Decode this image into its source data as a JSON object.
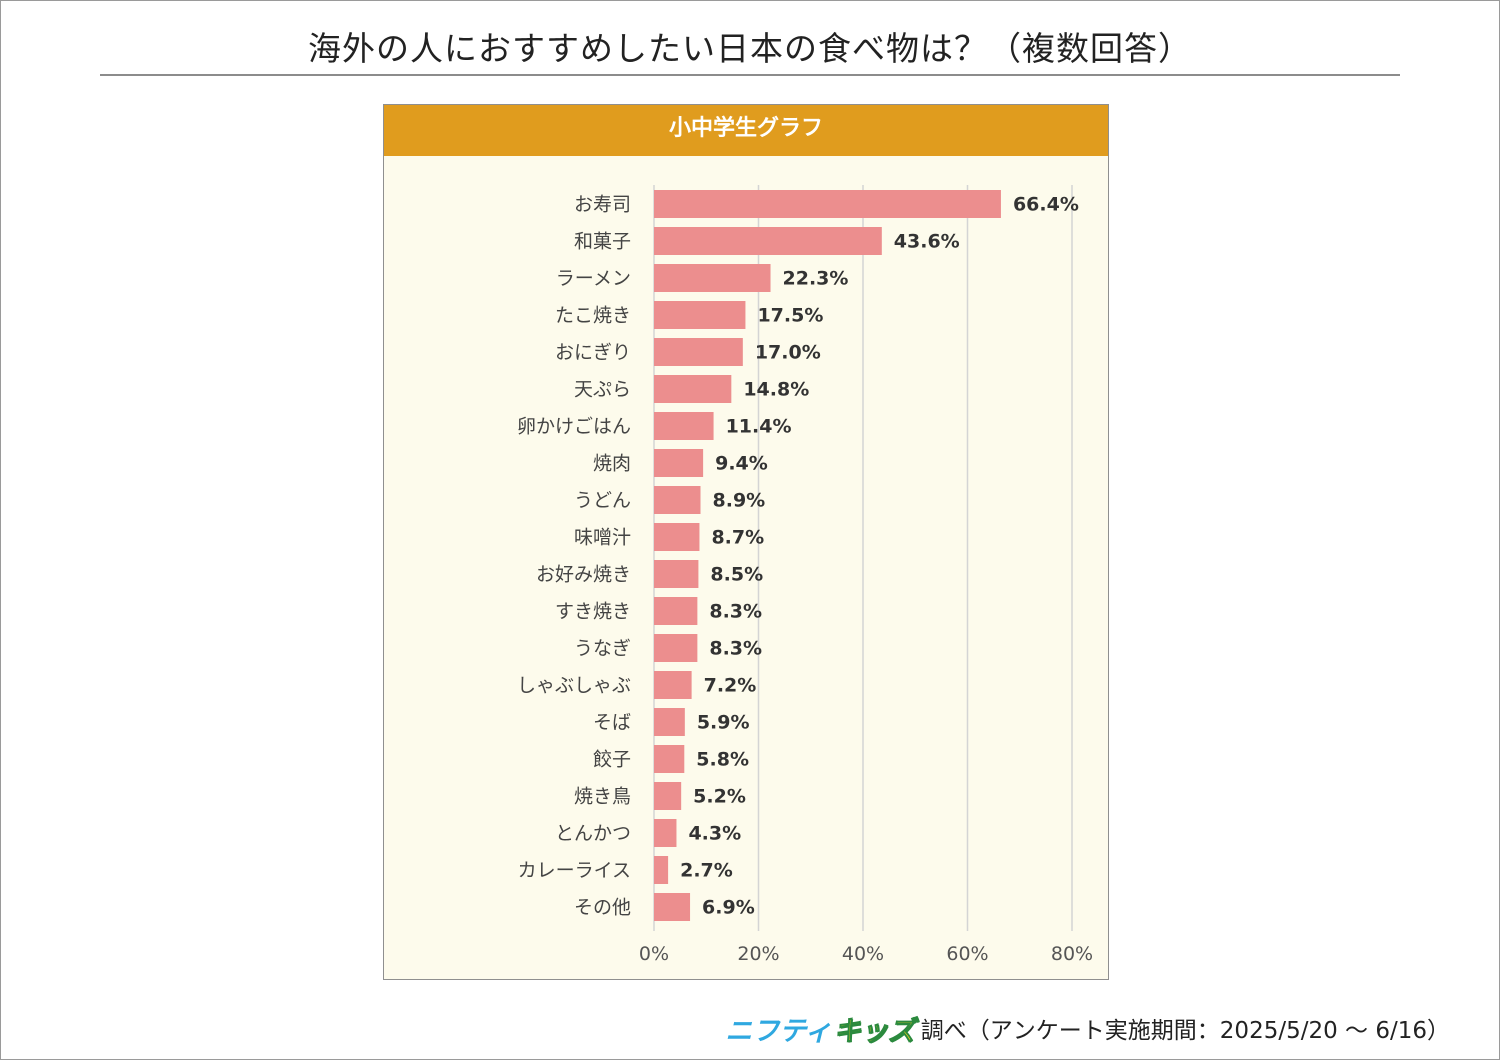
{
  "page": {
    "title": "海外の人におすすめしたい日本の食べ物は？（複数回答）"
  },
  "panel": {
    "header": "小中学生グラフ"
  },
  "footer": {
    "logo_part1": "ニフティ",
    "logo_part2": "キッズ",
    "text": "調べ（アンケート実施期間：2025/5/20 ～ 6/16）"
  },
  "chart_data": {
    "type": "bar",
    "orientation": "horizontal",
    "title": "小中学生グラフ",
    "categories": [
      "お寿司",
      "和菓子",
      "ラーメン",
      "たこ焼き",
      "おにぎり",
      "天ぷら",
      "卵かけごはん",
      "焼肉",
      "うどん",
      "味噌汁",
      "お好み焼き",
      "すき焼き",
      "うなぎ",
      "しゃぶしゃぶ",
      "そば",
      "餃子",
      "焼き鳥",
      "とんかつ",
      "カレーライス",
      "その他"
    ],
    "values": [
      66.4,
      43.6,
      22.3,
      17.5,
      17.0,
      14.8,
      11.4,
      9.4,
      8.9,
      8.7,
      8.5,
      8.3,
      8.3,
      7.2,
      5.9,
      5.8,
      5.2,
      4.3,
      2.7,
      6.9
    ],
    "value_labels": [
      "66.4%",
      "43.6%",
      "22.3%",
      "17.5%",
      "17.0%",
      "14.8%",
      "11.4%",
      "9.4%",
      "8.9%",
      "8.7%",
      "8.5%",
      "8.3%",
      "8.3%",
      "7.2%",
      "5.9%",
      "5.8%",
      "5.2%",
      "4.3%",
      "2.7%",
      "6.9%"
    ],
    "xlim": [
      0,
      80
    ],
    "xticks": [
      0,
      20,
      40,
      60,
      80
    ],
    "xtick_labels": [
      "0%",
      "20%",
      "40%",
      "60%",
      "80%"
    ],
    "grid": true,
    "bar_color": "#ec8e8e",
    "grid_color": "#d4d4d4",
    "panel_bg": "#fdfbec",
    "header_color": "#e09c1e"
  }
}
